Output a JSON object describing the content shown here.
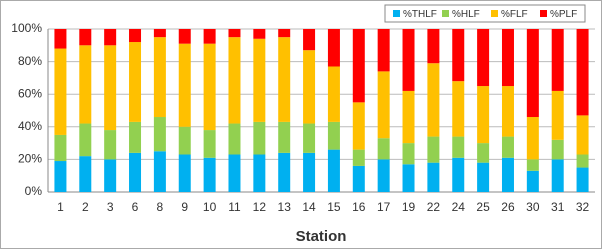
{
  "chart_data": {
    "type": "stacked_bar",
    "x_label": "Station",
    "categories": [
      "1",
      "2",
      "3",
      "6",
      "8",
      "9",
      "10",
      "11",
      "12",
      "13",
      "14",
      "15",
      "16",
      "17",
      "19",
      "22",
      "24",
      "25",
      "26",
      "30",
      "31",
      "32"
    ],
    "series": [
      {
        "name": "%THLF",
        "color": "#00b0f0",
        "values": [
          19,
          22,
          20,
          24,
          25,
          23,
          21,
          23,
          23,
          24,
          24,
          26,
          16,
          20,
          17,
          18,
          21,
          18,
          21,
          13,
          20,
          15
        ]
      },
      {
        "name": "%HLF",
        "color": "#92d050",
        "values": [
          16,
          20,
          18,
          19,
          21,
          17,
          17,
          19,
          20,
          19,
          18,
          17,
          10,
          13,
          13,
          16,
          13,
          12,
          13,
          7,
          12,
          8
        ]
      },
      {
        "name": "%FLF",
        "color": "#ffc000",
        "values": [
          53,
          48,
          52,
          49,
          49,
          51,
          53,
          53,
          51,
          52,
          45,
          34,
          29,
          41,
          32,
          45,
          34,
          35,
          31,
          26,
          30,
          24
        ]
      },
      {
        "name": "%PLF",
        "color": "#ff0000",
        "values": [
          12,
          10,
          10,
          8,
          5,
          9,
          9,
          5,
          6,
          5,
          13,
          23,
          45,
          26,
          38,
          21,
          32,
          35,
          35,
          54,
          38,
          53
        ]
      }
    ],
    "ylim": [
      0,
      100
    ],
    "yticks": [
      {
        "value": 0,
        "label": "0%"
      },
      {
        "value": 20,
        "label": "20%"
      },
      {
        "value": 40,
        "label": "40%"
      },
      {
        "value": 60,
        "label": "60%"
      },
      {
        "value": 80,
        "label": "80%"
      },
      {
        "value": 100,
        "label": "100%"
      }
    ],
    "grid": true,
    "legend": "top-right"
  }
}
